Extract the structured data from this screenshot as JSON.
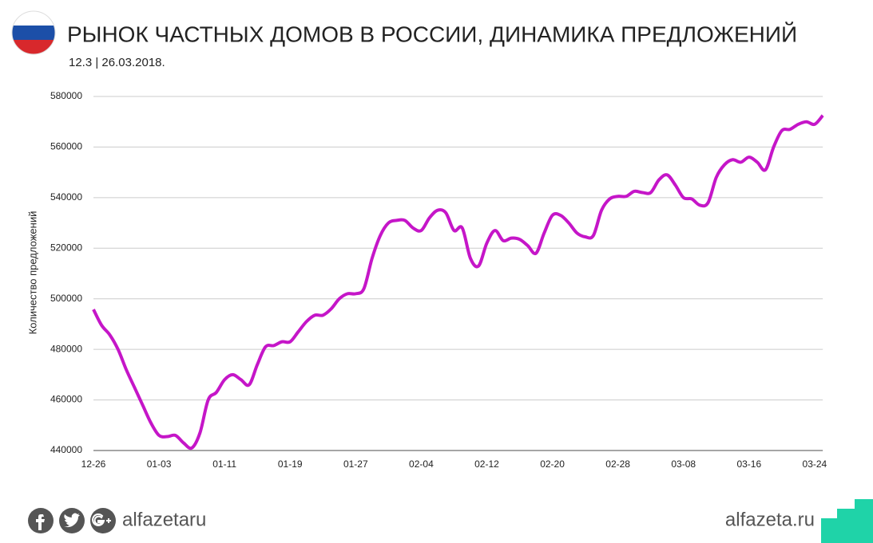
{
  "chart_data": {
    "type": "line",
    "title": "РЫНОК ЧАСТНЫХ ДОМОВ В РОССИИ, ДИНАМИКА ПРЕДЛОЖЕНИЙ",
    "subtitle": "12.3 | 26.03.2018.",
    "y_label": "Количество предложений",
    "footer_left": "alfazetaru",
    "footer_right": "alfazeta.ru",
    "categories": [
      "12-26",
      null,
      null,
      null,
      null,
      null,
      null,
      null,
      "01-03",
      null,
      null,
      null,
      null,
      null,
      null,
      null,
      "01-11",
      null,
      null,
      null,
      null,
      null,
      null,
      null,
      "01-19",
      null,
      null,
      null,
      null,
      null,
      null,
      null,
      "01-27",
      null,
      null,
      null,
      null,
      null,
      null,
      null,
      "02-04",
      null,
      null,
      null,
      null,
      null,
      null,
      null,
      "02-12",
      null,
      null,
      null,
      null,
      null,
      null,
      null,
      "02-20",
      null,
      null,
      null,
      null,
      null,
      null,
      null,
      "02-28",
      null,
      null,
      null,
      null,
      null,
      null,
      null,
      "03-08",
      null,
      null,
      null,
      null,
      null,
      null,
      null,
      "03-16",
      null,
      null,
      null,
      null,
      null,
      null,
      null,
      "03-24",
      null
    ],
    "series": [
      {
        "name": "Количество предложений",
        "color": "#c516c8",
        "values": [
          495800,
          489500,
          485700,
          480000,
          472000,
          465000,
          458000,
          451000,
          446000,
          445500,
          446000,
          443000,
          441000,
          447000,
          460000,
          463000,
          468000,
          470000,
          468000,
          466000,
          474000,
          481000,
          481500,
          483000,
          483000,
          487000,
          491000,
          493500,
          493500,
          496000,
          500000,
          502000,
          502000,
          504000,
          516000,
          525000,
          530000,
          531000,
          531000,
          528000,
          527000,
          532000,
          535000,
          534000,
          527000,
          528000,
          516000,
          513000,
          522000,
          527000,
          523000,
          524000,
          523500,
          521000,
          518000,
          526000,
          533000,
          533000,
          530000,
          526000,
          524500,
          525000,
          535000,
          539500,
          540500,
          540500,
          542500,
          542000,
          542000,
          547000,
          549000,
          545000,
          540000,
          539500,
          537000,
          538000,
          548000,
          553000,
          555000,
          554000,
          556000,
          554000,
          551000,
          560000,
          566500,
          567000,
          569000,
          570000,
          569000,
          572500
        ]
      }
    ],
    "ylim": [
      440000,
      580000
    ],
    "yticks": [
      440000,
      460000,
      480000,
      500000,
      520000,
      540000,
      560000,
      580000
    ],
    "grid": true
  }
}
